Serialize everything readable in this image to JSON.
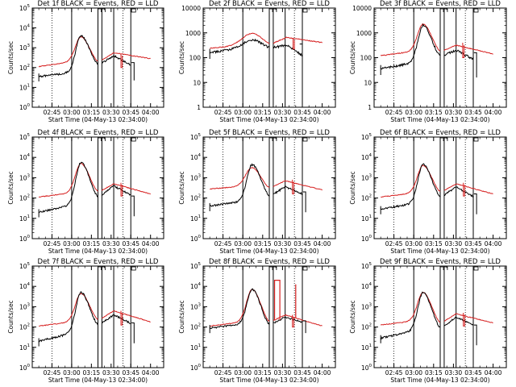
{
  "figure": {
    "shared": {
      "ylabel": "Counts/sec",
      "xlabel": "Start Time (04-May-13 02:34:00)",
      "xtick_labels": [
        "02:45",
        "03:00",
        "03:15",
        "03:30",
        "03:45",
        "04:00"
      ],
      "legend_text": "BLACK = Events, RED = LLD",
      "series_colors": {
        "events": "#000000",
        "lld": "#d62020"
      }
    }
  },
  "chart_data": [
    {
      "type": "line",
      "title": "Det 1f BLACK = Events, RED = LLD",
      "ylim_exp": [
        0,
        5
      ],
      "ytick_labels": [
        "10^0",
        "10^1",
        "10^2",
        "10^3",
        "10^4",
        "10^5"
      ],
      "xlim": [
        0,
        100
      ],
      "data_start": 5,
      "data_end": 90,
      "events": {
        "b": 1.55,
        "r": 1.8,
        "p": 3.6,
        "pc": 37,
        "w": 5.5,
        "v": 2.15,
        "vc": 51,
        "bump": 2.6,
        "bc": 62,
        "end": 1.6
      },
      "lld": {
        "b": 2.05,
        "r": 2.35,
        "p": 3.55,
        "pc": 37,
        "w": 6,
        "v": 2.3,
        "vc": 51,
        "bump": 2.75,
        "bc": 62,
        "end": 2.45
      },
      "event_end_x": 75,
      "lld_end_x": 90,
      "lld_dropout": {
        "x": 67.5,
        "top": 2.7,
        "bottom": 2.0
      },
      "events_tail": {
        "x": 77.5,
        "top": 2.25,
        "bottom": 1.35
      },
      "vlines_dotted": [
        15,
        69
      ],
      "vlines_solid": [
        30,
        50,
        53,
        62,
        75
      ],
      "gaps": [
        [
          50,
          53
        ],
        [
          62,
          62
        ]
      ],
      "spikes": []
    },
    {
      "type": "line",
      "title": "Det 2f BLACK = Events, RED = LLD",
      "ylim_exp": [
        0,
        4
      ],
      "ytick_labels": [
        "1",
        "10",
        "100",
        "1000",
        "10000"
      ],
      "xlim": [
        0,
        100
      ],
      "data_start": 5,
      "data_end": 90,
      "events": {
        "b": 2.2,
        "r": 2.45,
        "p": 2.72,
        "pc": 37,
        "w": 10,
        "v": 2.4,
        "vc": 52,
        "bump": 2.5,
        "bc": 63,
        "end": 1.55
      },
      "lld": {
        "b": 2.38,
        "r": 2.5,
        "p": 2.98,
        "pc": 37,
        "w": 11,
        "v": 2.56,
        "vc": 52,
        "bump": 2.82,
        "bc": 63,
        "end": 2.6
      },
      "event_end_x": 75,
      "lld_end_x": 90,
      "lld_dropout": {
        "x": 68,
        "top": 2.8,
        "bottom": 2.35
      },
      "events_tail": {
        "x": 75,
        "top": 2.55,
        "bottom": 1.55
      },
      "vlines_dotted": [
        15,
        69
      ],
      "vlines_solid": [
        30,
        50,
        53,
        62,
        75
      ],
      "gaps": [
        [
          50,
          53
        ]
      ],
      "spikes": []
    },
    {
      "type": "line",
      "title": "Det 3f BLACK = Events, RED = LLD",
      "ylim_exp": [
        0,
        4
      ],
      "ytick_labels": [
        "1",
        "10",
        "100",
        "1000",
        "10000"
      ],
      "xlim": [
        0,
        100
      ],
      "data_start": 5,
      "data_end": 90,
      "events": {
        "b": 1.55,
        "r": 1.85,
        "p": 3.3,
        "pc": 37,
        "w": 5.5,
        "v": 2.05,
        "vc": 51,
        "bump": 2.3,
        "bc": 62,
        "end": 1.5
      },
      "lld": {
        "b": 2.08,
        "r": 2.3,
        "p": 3.35,
        "pc": 37,
        "w": 6,
        "v": 2.25,
        "vc": 51,
        "bump": 2.5,
        "bc": 62,
        "end": 2.15
      },
      "event_end_x": 75,
      "lld_end_x": 90,
      "lld_dropout": {
        "x": 67,
        "top": 2.6,
        "bottom": 2.0
      },
      "events_tail": {
        "x": 77.5,
        "top": 2.2,
        "bottom": 1.2
      },
      "vlines_dotted": [
        15,
        69
      ],
      "vlines_solid": [
        30,
        50,
        53,
        62,
        75
      ],
      "gaps": [
        [
          50,
          53
        ]
      ],
      "spikes": []
    },
    {
      "type": "line",
      "title": "Det 4f BLACK = Events, RED = LLD",
      "ylim_exp": [
        0,
        5
      ],
      "ytick_labels": [
        "10^0",
        "10^1",
        "10^2",
        "10^3",
        "10^4",
        "10^5"
      ],
      "xlim": [
        0,
        100
      ],
      "data_start": 5,
      "data_end": 90,
      "events": {
        "b": 1.3,
        "r": 1.75,
        "p": 3.75,
        "pc": 37,
        "w": 5.5,
        "v": 2.05,
        "vc": 51,
        "bump": 2.6,
        "bc": 62,
        "end": 1.6
      },
      "lld": {
        "b": 2.05,
        "r": 2.3,
        "p": 3.7,
        "pc": 37,
        "w": 6,
        "v": 2.3,
        "vc": 51,
        "bump": 2.7,
        "bc": 62,
        "end": 2.2
      },
      "event_end_x": 75,
      "lld_end_x": 90,
      "lld_dropout": {
        "x": 67.5,
        "top": 2.75,
        "bottom": 2.1
      },
      "events_tail": {
        "x": 77.5,
        "top": 2.1,
        "bottom": 1.1
      },
      "vlines_dotted": [
        15,
        69
      ],
      "vlines_solid": [
        30,
        50,
        53,
        62,
        75
      ],
      "gaps": [
        [
          50,
          53
        ]
      ],
      "spikes": []
    },
    {
      "type": "line",
      "title": "Det 5f BLACK = Events, RED = LLD",
      "ylim_exp": [
        0,
        5
      ],
      "ytick_labels": [
        "10^0",
        "10^1",
        "10^2",
        "10^3",
        "10^4",
        "10^5"
      ],
      "xlim": [
        0,
        100
      ],
      "data_start": 5,
      "data_end": 90,
      "events": {
        "b": 1.6,
        "r": 1.9,
        "p": 3.65,
        "pc": 37,
        "w": 5.5,
        "v": 2.1,
        "vc": 51,
        "bump": 2.55,
        "bc": 62,
        "end": 1.8
      },
      "lld": {
        "b": 2.45,
        "r": 2.6,
        "p": 3.5,
        "pc": 37,
        "w": 7,
        "v": 2.5,
        "vc": 51,
        "bump": 2.85,
        "bc": 62,
        "end": 2.4
      },
      "event_end_x": 75,
      "lld_end_x": 90,
      "lld_dropout": {
        "x": 67.5,
        "top": 2.9,
        "bottom": 2.2
      },
      "events_tail": {
        "x": 77.5,
        "top": 2.3,
        "bottom": 1.3
      },
      "vlines_dotted": [
        15,
        69
      ],
      "vlines_solid": [
        30,
        50,
        53,
        62,
        75
      ],
      "gaps": [
        [
          50,
          53
        ]
      ],
      "spikes": []
    },
    {
      "type": "line",
      "title": "Det 6f BLACK = Events, RED = LLD",
      "ylim_exp": [
        0,
        5
      ],
      "ytick_labels": [
        "10^0",
        "10^1",
        "10^2",
        "10^3",
        "10^4",
        "10^5"
      ],
      "xlim": [
        0,
        100
      ],
      "data_start": 5,
      "data_end": 90,
      "events": {
        "b": 1.45,
        "r": 1.8,
        "p": 3.65,
        "pc": 37,
        "w": 5.5,
        "v": 2.05,
        "vc": 51,
        "bump": 2.55,
        "bc": 62,
        "end": 1.5
      },
      "lld": {
        "b": 2.05,
        "r": 2.3,
        "p": 3.6,
        "pc": 37,
        "w": 6,
        "v": 2.3,
        "vc": 51,
        "bump": 2.7,
        "bc": 62,
        "end": 2.2
      },
      "event_end_x": 75,
      "lld_end_x": 90,
      "lld_dropout": {
        "x": 67.5,
        "top": 2.75,
        "bottom": 2.1
      },
      "events_tail": {
        "x": 77.5,
        "top": 2.2,
        "bottom": 1.2
      },
      "vlines_dotted": [
        15,
        69
      ],
      "vlines_solid": [
        30,
        50,
        53,
        62,
        75
      ],
      "gaps": [
        [
          50,
          53
        ]
      ],
      "spikes": []
    },
    {
      "type": "line",
      "title": "Det 7f BLACK = Events, RED = LLD",
      "ylim_exp": [
        0,
        5
      ],
      "ytick_labels": [
        "10^0",
        "10^1",
        "10^2",
        "10^3",
        "10^4",
        "10^5"
      ],
      "xlim": [
        0,
        100
      ],
      "data_start": 5,
      "data_end": 90,
      "events": {
        "b": 1.3,
        "r": 1.8,
        "p": 3.7,
        "pc": 37,
        "w": 5.5,
        "v": 2.1,
        "vc": 51,
        "bump": 2.6,
        "bc": 62,
        "end": 1.7
      },
      "lld": {
        "b": 2.05,
        "r": 2.3,
        "p": 3.65,
        "pc": 37,
        "w": 6,
        "v": 2.35,
        "vc": 51,
        "bump": 2.8,
        "bc": 62,
        "end": 2.25
      },
      "event_end_x": 75,
      "lld_end_x": 90,
      "lld_dropout": {
        "x": 67.5,
        "top": 2.8,
        "bottom": 2.1
      },
      "events_tail": {
        "x": 77.5,
        "top": 2.2,
        "bottom": 1.2
      },
      "vlines_dotted": [
        15,
        69
      ],
      "vlines_solid": [
        30,
        50,
        53,
        62,
        75
      ],
      "gaps": [
        [
          50,
          53
        ]
      ],
      "spikes": []
    },
    {
      "type": "line",
      "title": "Det 8f BLACK = Events, RED = LLD",
      "ylim_exp": [
        0,
        5
      ],
      "ytick_labels": [
        "10^0",
        "10^1",
        "10^2",
        "10^3",
        "10^4",
        "10^5"
      ],
      "xlim": [
        0,
        100
      ],
      "data_start": 5,
      "data_end": 90,
      "events": {
        "b": 1.95,
        "r": 2.2,
        "p": 3.85,
        "pc": 37,
        "w": 5.5,
        "v": 2.1,
        "vc": 51,
        "bump": 2.5,
        "bc": 62,
        "end": 1.9
      },
      "lld": {
        "b": 2.05,
        "r": 2.3,
        "p": 3.85,
        "pc": 37,
        "w": 6,
        "v": 2.25,
        "vc": 51,
        "bump": 2.6,
        "bc": 62,
        "end": 2.05
      },
      "event_end_x": 75,
      "lld_end_x": 90,
      "lld_dropout": {
        "x": 67.5,
        "top": 2.6,
        "bottom": 2.0
      },
      "events_tail": {
        "x": 77.5,
        "top": 2.3,
        "bottom": 1.7
      },
      "vlines_dotted": [
        15,
        69
      ],
      "vlines_solid": [
        30,
        50,
        53,
        62,
        75
      ],
      "gaps": [
        [
          50,
          53
        ]
      ],
      "spikes": [
        {
          "x1": 54,
          "x2": 58,
          "top": 4.3
        },
        {
          "x1": 70,
          "x2": 70,
          "top": 4.1
        }
      ]
    },
    {
      "type": "line",
      "title": "Det 9f BLACK = Events, RED = LLD",
      "ylim_exp": [
        0,
        5
      ],
      "ytick_labels": [
        "10^0",
        "10^1",
        "10^2",
        "10^3",
        "10^4",
        "10^5"
      ],
      "xlim": [
        0,
        100
      ],
      "data_start": 5,
      "data_end": 90,
      "events": {
        "b": 1.45,
        "r": 1.9,
        "p": 3.7,
        "pc": 37,
        "w": 5.5,
        "v": 1.95,
        "vc": 51,
        "bump": 2.5,
        "bc": 62,
        "end": 1.6
      },
      "lld": {
        "b": 2.1,
        "r": 2.35,
        "p": 3.7,
        "pc": 37,
        "w": 6,
        "v": 2.2,
        "vc": 51,
        "bump": 2.65,
        "bc": 62,
        "end": 2.2
      },
      "event_end_x": 75,
      "lld_end_x": 90,
      "lld_dropout": {
        "x": 67.5,
        "top": 2.7,
        "bottom": 2.05
      },
      "events_tail": {
        "x": 77.5,
        "top": 2.1,
        "bottom": 1.1
      },
      "vlines_dotted": [
        15,
        69
      ],
      "vlines_solid": [
        30,
        50,
        53,
        62,
        75
      ],
      "gaps": [
        [
          50,
          53
        ]
      ],
      "spikes": []
    }
  ]
}
